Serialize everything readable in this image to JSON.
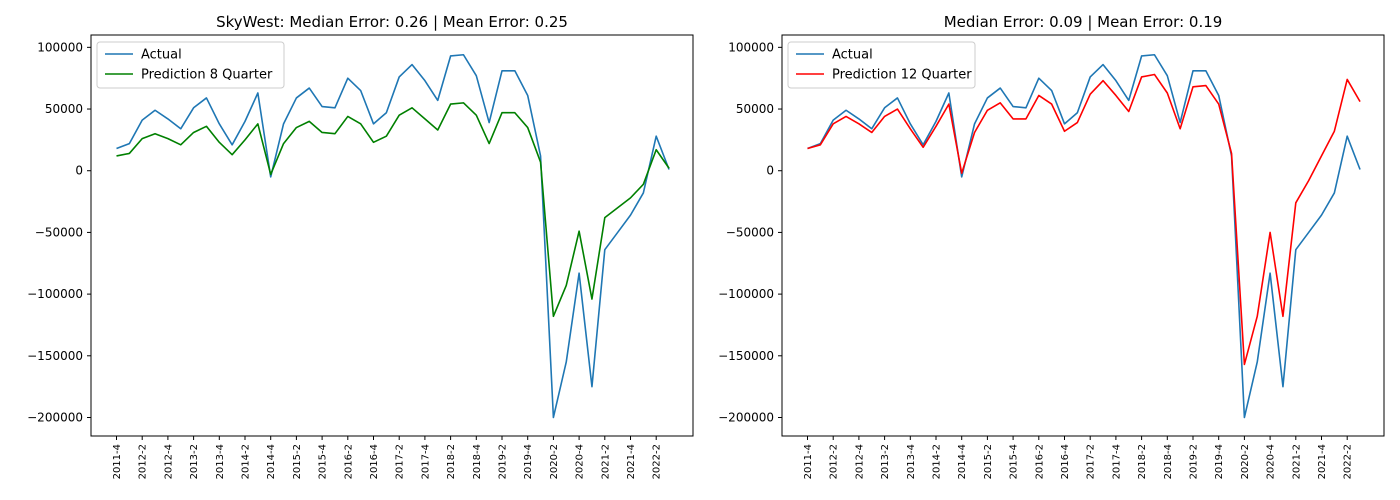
{
  "chart_data": [
    {
      "type": "line",
      "title": "SkyWest: Median Error: 0.26 | Mean Error: 0.25",
      "xlabel": "",
      "ylabel": "",
      "ylim": [
        -215000,
        110000
      ],
      "yticks": [
        100000,
        50000,
        0,
        -50000,
        -100000,
        -150000,
        -200000
      ],
      "ytick_labels": [
        "100000",
        "50000",
        "0",
        "−50000",
        "−100000",
        "−150000",
        "−200000"
      ],
      "legend_position": "upper-left",
      "categories": [
        "2011-4",
        "2012-1",
        "2012-2",
        "2012-3",
        "2012-4",
        "2013-1",
        "2013-2",
        "2013-3",
        "2013-4",
        "2014-1",
        "2014-2",
        "2014-3",
        "2014-4",
        "2015-1",
        "2015-2",
        "2015-3",
        "2015-4",
        "2016-1",
        "2016-2",
        "2016-3",
        "2016-4",
        "2017-1",
        "2017-2",
        "2017-3",
        "2017-4",
        "2018-1",
        "2018-2",
        "2018-3",
        "2018-4",
        "2019-1",
        "2019-2",
        "2019-3",
        "2019-4",
        "2020-1",
        "2020-2",
        "2020-3",
        "2020-4",
        "2021-1",
        "2021-2",
        "2021-3",
        "2021-4",
        "2022-1",
        "2022-2",
        "2022-3"
      ],
      "x_tick_labels": [
        "2011-4",
        "2012-2",
        "2012-4",
        "2013-2",
        "2013-4",
        "2014-2",
        "2014-4",
        "2015-2",
        "2015-4",
        "2016-2",
        "2016-4",
        "2017-2",
        "2017-4",
        "2018-2",
        "2018-4",
        "2019-2",
        "2019-4",
        "2020-2",
        "2020-4",
        "2021-2",
        "2021-4",
        "2022-2"
      ],
      "series": [
        {
          "name": "Actual",
          "color": "#1f77b4",
          "values": [
            18000,
            22000,
            41000,
            49000,
            42000,
            34000,
            51000,
            59000,
            38000,
            21000,
            40000,
            63000,
            -5000,
            38000,
            59000,
            67000,
            52000,
            51000,
            75000,
            65000,
            38000,
            47000,
            76000,
            86000,
            73000,
            57000,
            93000,
            94000,
            77000,
            39000,
            81000,
            81000,
            61000,
            12000,
            -200000,
            -155000,
            -83000,
            -175000,
            -64000,
            -50000,
            -36000,
            -18000,
            28000,
            1000
          ]
        },
        {
          "name": "Prediction 8 Quarter",
          "color": "#008000",
          "values": [
            12000,
            14000,
            26000,
            30000,
            26000,
            21000,
            31000,
            36000,
            23000,
            13000,
            25000,
            38000,
            -3000,
            22000,
            35000,
            40000,
            31000,
            30000,
            44000,
            38000,
            23000,
            28000,
            45000,
            51000,
            42000,
            33000,
            54000,
            55000,
            45000,
            22000,
            47000,
            47000,
            35000,
            7000,
            -118000,
            -93000,
            -49000,
            -104000,
            -38000,
            -30000,
            -22000,
            -11000,
            17000,
            2000
          ]
        }
      ]
    },
    {
      "type": "line",
      "title": "Median Error: 0.09 | Mean Error: 0.19",
      "xlabel": "",
      "ylabel": "",
      "ylim": [
        -215000,
        110000
      ],
      "yticks": [
        100000,
        50000,
        0,
        -50000,
        -100000,
        -150000,
        -200000
      ],
      "ytick_labels": [
        "100000",
        "50000",
        "0",
        "−50000",
        "−100000",
        "−150000",
        "−200000"
      ],
      "legend_position": "upper-left",
      "categories": [
        "2011-4",
        "2012-1",
        "2012-2",
        "2012-3",
        "2012-4",
        "2013-1",
        "2013-2",
        "2013-3",
        "2013-4",
        "2014-1",
        "2014-2",
        "2014-3",
        "2014-4",
        "2015-1",
        "2015-2",
        "2015-3",
        "2015-4",
        "2016-1",
        "2016-2",
        "2016-3",
        "2016-4",
        "2017-1",
        "2017-2",
        "2017-3",
        "2017-4",
        "2018-1",
        "2018-2",
        "2018-3",
        "2018-4",
        "2019-1",
        "2019-2",
        "2019-3",
        "2019-4",
        "2020-1",
        "2020-2",
        "2020-3",
        "2020-4",
        "2021-1",
        "2021-2",
        "2021-3",
        "2021-4",
        "2022-1",
        "2022-2",
        "2022-3"
      ],
      "x_tick_labels": [
        "2011-4",
        "2012-2",
        "2012-4",
        "2013-2",
        "2013-4",
        "2014-2",
        "2014-4",
        "2015-2",
        "2015-4",
        "2016-2",
        "2016-4",
        "2017-2",
        "2017-4",
        "2018-2",
        "2018-4",
        "2019-2",
        "2019-4",
        "2020-2",
        "2020-4",
        "2021-2",
        "2021-4",
        "2022-2"
      ],
      "series": [
        {
          "name": "Actual",
          "color": "#1f77b4",
          "values": [
            18000,
            22000,
            41000,
            49000,
            42000,
            34000,
            51000,
            59000,
            38000,
            21000,
            40000,
            63000,
            -5000,
            38000,
            59000,
            67000,
            52000,
            51000,
            75000,
            65000,
            38000,
            47000,
            76000,
            86000,
            73000,
            57000,
            93000,
            94000,
            77000,
            39000,
            81000,
            81000,
            61000,
            12000,
            -200000,
            -155000,
            -83000,
            -175000,
            -64000,
            -50000,
            -36000,
            -18000,
            28000,
            1000
          ]
        },
        {
          "name": "Prediction 12 Quarter",
          "color": "#ff0000",
          "values": [
            18000,
            21000,
            38000,
            44000,
            38000,
            31000,
            44000,
            50000,
            34000,
            19000,
            36000,
            54000,
            -2000,
            31000,
            49000,
            55000,
            42000,
            42000,
            61000,
            54000,
            32000,
            39000,
            62000,
            73000,
            61000,
            48000,
            76000,
            78000,
            63000,
            34000,
            68000,
            69000,
            54000,
            14000,
            -157000,
            -118000,
            -50000,
            -118000,
            -26000,
            -8000,
            12000,
            32000,
            74000,
            56000
          ]
        }
      ]
    }
  ]
}
